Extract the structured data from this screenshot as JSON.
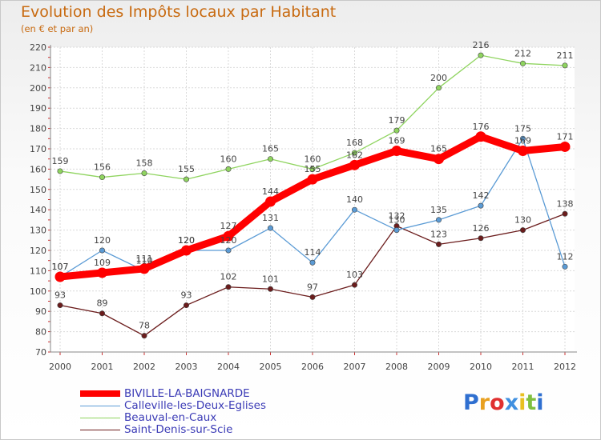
{
  "header": {
    "title": "Evolution des Impôts locaux par Habitant",
    "subtitle": "(en € et par an)"
  },
  "chart_data": {
    "type": "line",
    "title": "Evolution des Impôts locaux par Habitant",
    "subtitle": "(en € et par an)",
    "xlabel": "",
    "ylabel": "",
    "x": [
      "2000",
      "2001",
      "2002",
      "2003",
      "2004",
      "2005",
      "2006",
      "2007",
      "2008",
      "2009",
      "2010",
      "2011",
      "2012"
    ],
    "ylim": [
      70,
      220
    ],
    "yticks": [
      70,
      80,
      90,
      100,
      110,
      120,
      130,
      140,
      150,
      160,
      170,
      180,
      190,
      200,
      210,
      220
    ],
    "grid": true,
    "legend_position": "bottom-left",
    "series": [
      {
        "name": "BIVILLE-LA-BAIGNARDE",
        "color": "#ff0000",
        "values": [
          107,
          109,
          111,
          120,
          127,
          144,
          155,
          162,
          169,
          165,
          176,
          169,
          171
        ]
      },
      {
        "name": "Calleville-les-Deux-Eglises",
        "color": "#5b9bd5",
        "values": [
          107,
          120,
          110,
          120,
          120,
          131,
          114,
          140,
          130,
          135,
          142,
          175,
          112
        ]
      },
      {
        "name": "Beauval-en-Caux",
        "color": "#8fd45f",
        "values": [
          159,
          156,
          158,
          155,
          160,
          165,
          160,
          168,
          179,
          200,
          216,
          212,
          211
        ]
      },
      {
        "name": "Saint-Denis-sur-Scie",
        "color": "#6b1c1c",
        "values": [
          93,
          89,
          78,
          93,
          102,
          101,
          97,
          103,
          132,
          123,
          126,
          130,
          138
        ]
      }
    ]
  },
  "legend": {
    "items": [
      {
        "label": "BIVILLE-LA-BAIGNARDE"
      },
      {
        "label": "Calleville-les-Deux-Eglises"
      },
      {
        "label": "Beauval-en-Caux"
      },
      {
        "label": "Saint-Denis-sur-Scie"
      }
    ]
  },
  "logo": {
    "letters": [
      "P",
      "r",
      "o",
      "x",
      "i",
      "t",
      "i"
    ],
    "colors": [
      "#2f6fd0",
      "#e8a020",
      "#e03030",
      "#4090e0",
      "#e8c020",
      "#7fbf3f",
      "#2f6fd0"
    ]
  }
}
